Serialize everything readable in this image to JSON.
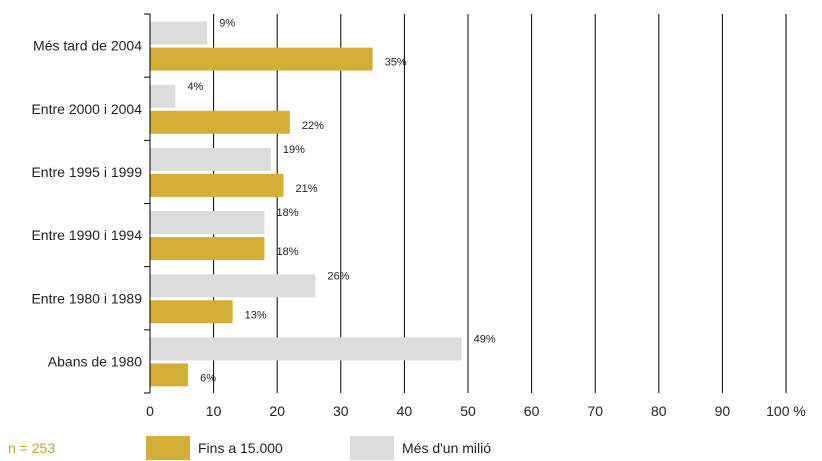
{
  "chart_data": {
    "type": "bar",
    "orientation": "horizontal",
    "categories": [
      "Més tard de 2004",
      "Entre 2000 i 2004",
      "Entre 1995 i 1999",
      "Entre 1990 i 1994",
      "Entre 1980 i 1989",
      "Abans de 1980"
    ],
    "series": [
      {
        "name": "Més d'un milió",
        "color": "#dcdcdc",
        "values": [
          9,
          4,
          19,
          18,
          26,
          49
        ]
      },
      {
        "name": "Fins a 15.000",
        "color": "#d4af37",
        "values": [
          35,
          22,
          21,
          18,
          13,
          6
        ]
      }
    ],
    "data_labels": [
      [
        "9%",
        "4%",
        "19%",
        "18%",
        "26%",
        "49%"
      ],
      [
        "35%",
        "22%",
        "21%",
        "18%",
        "13%",
        "6%"
      ]
    ],
    "xlim": [
      0,
      100
    ],
    "xticks": [
      "0",
      "10",
      "20",
      "30",
      "40",
      "50",
      "60",
      "70",
      "80",
      "90",
      "100 %"
    ],
    "grid": true,
    "legend_position": "bottom",
    "note": "n = 253"
  }
}
